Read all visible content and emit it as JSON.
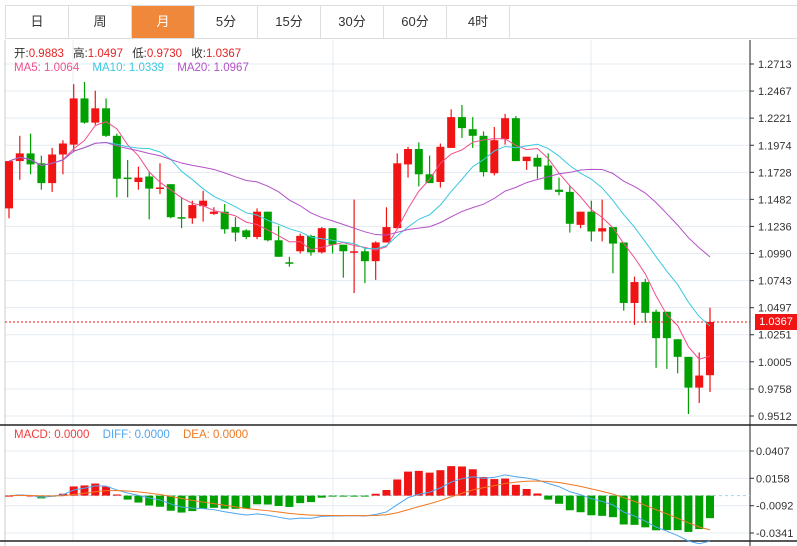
{
  "tabs": [
    {
      "label": "日",
      "active": false
    },
    {
      "label": "周",
      "active": false
    },
    {
      "label": "月",
      "active": true
    },
    {
      "label": "5分",
      "active": false
    },
    {
      "label": "15分",
      "active": false
    },
    {
      "label": "30分",
      "active": false
    },
    {
      "label": "60分",
      "active": false
    },
    {
      "label": "4时",
      "active": false
    }
  ],
  "ohlc_legend": {
    "open_label": "开:",
    "open": "0.9883",
    "high_label": "高:",
    "high": "1.0497",
    "low_label": "低:",
    "low": "0.9730",
    "close_label": "收:",
    "close": "1.0367"
  },
  "ma_legend": {
    "ma5": "MA5: 1.0064",
    "ma10": "MA10: 1.0339",
    "ma20": "MA20: 1.0967"
  },
  "macd_legend": {
    "macd": "MACD: 0.0000",
    "diff": "DIFF: 0.0000",
    "dea": "DEA: 0.0000"
  },
  "current_price": "1.0367",
  "colors": {
    "up": "#f01414",
    "down": "#00a000",
    "ma5": "#f0508c",
    "ma10": "#3cc8e0",
    "ma20": "#b450c8",
    "diff": "#4ea6f0",
    "dea": "#f07820",
    "active_tab": "#f0883c"
  },
  "chart_data": [
    {
      "type": "candlestick",
      "y_ticks": [
        "1.2713",
        "1.2467",
        "1.2221",
        "1.1974",
        "1.1728",
        "1.1482",
        "1.1236",
        "1.0990",
        "1.0743",
        "1.0497",
        "1.0251",
        "1.0005",
        "0.9758",
        "0.9512"
      ],
      "ylim": [
        0.9512,
        1.2713
      ],
      "grid": true,
      "candles": [
        [
          1.14,
          1.183,
          1.131,
          1.183
        ],
        [
          1.183,
          1.206,
          1.166,
          1.19
        ],
        [
          1.19,
          1.208,
          1.171,
          1.18
        ],
        [
          1.181,
          1.188,
          1.157,
          1.163
        ],
        [
          1.163,
          1.195,
          1.155,
          1.189
        ],
        [
          1.189,
          1.202,
          1.171,
          1.199
        ],
        [
          1.198,
          1.253,
          1.191,
          1.24
        ],
        [
          1.24,
          1.255,
          1.217,
          1.218
        ],
        [
          1.218,
          1.247,
          1.216,
          1.231
        ],
        [
          1.231,
          1.24,
          1.205,
          1.206
        ],
        [
          1.206,
          1.208,
          1.15,
          1.167
        ],
        [
          1.168,
          1.184,
          1.15,
          1.167
        ],
        [
          1.164,
          1.178,
          1.157,
          1.168
        ],
        [
          1.169,
          1.173,
          1.13,
          1.158
        ],
        [
          1.158,
          1.181,
          1.153,
          1.159
        ],
        [
          1.162,
          1.162,
          1.131,
          1.132
        ],
        [
          1.132,
          1.15,
          1.122,
          1.131
        ],
        [
          1.131,
          1.147,
          1.126,
          1.143
        ],
        [
          1.142,
          1.156,
          1.128,
          1.147
        ],
        [
          1.135,
          1.141,
          1.134,
          1.137
        ],
        [
          1.137,
          1.144,
          1.117,
          1.121
        ],
        [
          1.123,
          1.132,
          1.11,
          1.118
        ],
        [
          1.12,
          1.121,
          1.112,
          1.114
        ],
        [
          1.114,
          1.14,
          1.112,
          1.137
        ],
        [
          1.137,
          1.137,
          1.11,
          1.111
        ],
        [
          1.111,
          1.124,
          1.096,
          1.096
        ],
        [
          1.091,
          1.096,
          1.087,
          1.09
        ],
        [
          1.101,
          1.117,
          1.099,
          1.115
        ],
        [
          1.115,
          1.116,
          1.097,
          1.1
        ],
        [
          1.1,
          1.123,
          1.099,
          1.122
        ],
        [
          1.122,
          1.122,
          1.099,
          1.107
        ],
        [
          1.107,
          1.107,
          1.077,
          1.101
        ],
        [
          1.1,
          1.148,
          1.063,
          1.101
        ],
        [
          1.101,
          1.103,
          1.072,
          1.092
        ],
        [
          1.092,
          1.11,
          1.075,
          1.109
        ],
        [
          1.109,
          1.141,
          1.109,
          1.123
        ],
        [
          1.122,
          1.19,
          1.122,
          1.181
        ],
        [
          1.18,
          1.196,
          1.168,
          1.194
        ],
        [
          1.194,
          1.2,
          1.16,
          1.171
        ],
        [
          1.171,
          1.188,
          1.163,
          1.163
        ],
        [
          1.164,
          1.199,
          1.159,
          1.196
        ],
        [
          1.195,
          1.23,
          1.195,
          1.223
        ],
        [
          1.223,
          1.234,
          1.204,
          1.213
        ],
        [
          1.212,
          1.223,
          1.195,
          1.206
        ],
        [
          1.206,
          1.21,
          1.169,
          1.173
        ],
        [
          1.172,
          1.214,
          1.17,
          1.202
        ],
        [
          1.203,
          1.226,
          1.198,
          1.222
        ],
        [
          1.222,
          1.224,
          1.183,
          1.183
        ],
        [
          1.183,
          1.187,
          1.175,
          1.187
        ],
        [
          1.186,
          1.189,
          1.167,
          1.178
        ],
        [
          1.179,
          1.19,
          1.157,
          1.157
        ],
        [
          1.157,
          1.168,
          1.152,
          1.155
        ],
        [
          1.155,
          1.16,
          1.118,
          1.126
        ],
        [
          1.125,
          1.137,
          1.122,
          1.137
        ],
        [
          1.137,
          1.147,
          1.11,
          1.119
        ],
        [
          1.119,
          1.148,
          1.11,
          1.122
        ],
        [
          1.123,
          1.123,
          1.081,
          1.108
        ],
        [
          1.109,
          1.109,
          1.047,
          1.054
        ],
        [
          1.054,
          1.078,
          1.034,
          1.073
        ],
        [
          1.073,
          1.076,
          1.036,
          1.045
        ],
        [
          1.046,
          1.048,
          0.995,
          1.022
        ],
        [
          1.046,
          1.046,
          0.994,
          1.022
        ],
        [
          1.021,
          1.021,
          0.99,
          1.005
        ],
        [
          1.005,
          1.005,
          0.953,
          0.977
        ],
        [
          0.977,
          1.009,
          0.963,
          0.988
        ],
        [
          0.9883,
          1.0497,
          0.973,
          1.0367
        ]
      ],
      "moving_averages": [
        5,
        10,
        20
      ]
    },
    {
      "type": "macd",
      "y_ticks": [
        "0.0407",
        "0.0158",
        "-0.0092",
        "-0.0341"
      ],
      "ylim": [
        -0.0341,
        0.0407
      ]
    }
  ]
}
